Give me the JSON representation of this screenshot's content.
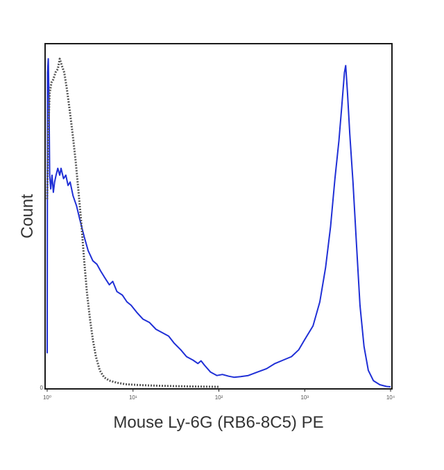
{
  "chart_data": {
    "type": "line",
    "title": "",
    "xlabel": "Mouse Ly-6G (RB6-8C5) PE",
    "ylabel": "Count",
    "xscale": "log",
    "xlim": [
      1,
      10000
    ],
    "ylim": [
      0,
      1
    ],
    "grid": false,
    "x_ticks": [
      {
        "value": 1,
        "label": "10⁰"
      },
      {
        "value": 10,
        "label": "10¹"
      },
      {
        "value": 100,
        "label": "10²"
      },
      {
        "value": 1000,
        "label": "10³"
      },
      {
        "value": 10000,
        "label": "10⁴"
      }
    ],
    "y_ticks": [
      {
        "value": 0,
        "label": "0"
      }
    ],
    "series": [
      {
        "color": "#1f2fd6",
        "style": "solid",
        "points": [
          [
            1.0,
            0.1
          ],
          [
            1.01,
            0.92
          ],
          [
            1.03,
            0.96
          ],
          [
            1.05,
            0.84
          ],
          [
            1.07,
            0.62
          ],
          [
            1.1,
            0.58
          ],
          [
            1.14,
            0.62
          ],
          [
            1.18,
            0.57
          ],
          [
            1.22,
            0.6
          ],
          [
            1.27,
            0.62
          ],
          [
            1.33,
            0.64
          ],
          [
            1.4,
            0.62
          ],
          [
            1.45,
            0.64
          ],
          [
            1.55,
            0.61
          ],
          [
            1.65,
            0.62
          ],
          [
            1.75,
            0.59
          ],
          [
            1.85,
            0.6
          ],
          [
            2.0,
            0.56
          ],
          [
            2.2,
            0.53
          ],
          [
            2.4,
            0.49
          ],
          [
            2.7,
            0.44
          ],
          [
            3.0,
            0.4
          ],
          [
            3.4,
            0.37
          ],
          [
            3.8,
            0.36
          ],
          [
            4.2,
            0.34
          ],
          [
            4.7,
            0.32
          ],
          [
            5.3,
            0.3
          ],
          [
            5.8,
            0.31
          ],
          [
            6.5,
            0.28
          ],
          [
            7.5,
            0.27
          ],
          [
            8.5,
            0.25
          ],
          [
            9.5,
            0.24
          ],
          [
            11.0,
            0.22
          ],
          [
            13.0,
            0.2
          ],
          [
            15.5,
            0.19
          ],
          [
            18.5,
            0.17
          ],
          [
            22.0,
            0.16
          ],
          [
            26.0,
            0.15
          ],
          [
            30.0,
            0.13
          ],
          [
            36.0,
            0.11
          ],
          [
            42.0,
            0.09
          ],
          [
            50.0,
            0.08
          ],
          [
            57.0,
            0.07
          ],
          [
            62.0,
            0.078
          ],
          [
            68.0,
            0.065
          ],
          [
            80.0,
            0.045
          ],
          [
            95.0,
            0.035
          ],
          [
            110.0,
            0.038
          ],
          [
            130.0,
            0.033
          ],
          [
            150.0,
            0.03
          ],
          [
            180.0,
            0.032
          ],
          [
            220.0,
            0.035
          ],
          [
            280.0,
            0.045
          ],
          [
            360.0,
            0.055
          ],
          [
            450.0,
            0.07
          ],
          [
            560.0,
            0.08
          ],
          [
            700.0,
            0.09
          ],
          [
            850.0,
            0.11
          ],
          [
            1000.0,
            0.14
          ],
          [
            1250.0,
            0.18
          ],
          [
            1500.0,
            0.25
          ],
          [
            1750.0,
            0.35
          ],
          [
            2000.0,
            0.47
          ],
          [
            2250.0,
            0.61
          ],
          [
            2500.0,
            0.72
          ],
          [
            2700.0,
            0.82
          ],
          [
            2900.0,
            0.92
          ],
          [
            3000.0,
            0.94
          ],
          [
            3150.0,
            0.86
          ],
          [
            3350.0,
            0.74
          ],
          [
            3650.0,
            0.6
          ],
          [
            4000.0,
            0.42
          ],
          [
            4400.0,
            0.24
          ],
          [
            4900.0,
            0.12
          ],
          [
            5500.0,
            0.05
          ],
          [
            6300.0,
            0.02
          ],
          [
            7500.0,
            0.008
          ],
          [
            9000.0,
            0.003
          ],
          [
            10000.0,
            0.002
          ]
        ]
      },
      {
        "color": "#555555",
        "style": "dotted",
        "points": [
          [
            1.0,
            0.55
          ],
          [
            1.03,
            0.75
          ],
          [
            1.07,
            0.86
          ],
          [
            1.12,
            0.89
          ],
          [
            1.18,
            0.9
          ],
          [
            1.25,
            0.92
          ],
          [
            1.33,
            0.93
          ],
          [
            1.4,
            0.96
          ],
          [
            1.48,
            0.94
          ],
          [
            1.58,
            0.92
          ],
          [
            1.7,
            0.87
          ],
          [
            1.85,
            0.8
          ],
          [
            2.0,
            0.73
          ],
          [
            2.15,
            0.66
          ],
          [
            2.3,
            0.58
          ],
          [
            2.5,
            0.48
          ],
          [
            2.7,
            0.37
          ],
          [
            2.9,
            0.28
          ],
          [
            3.15,
            0.2
          ],
          [
            3.4,
            0.14
          ],
          [
            3.7,
            0.09
          ],
          [
            4.1,
            0.05
          ],
          [
            4.6,
            0.03
          ],
          [
            5.3,
            0.02
          ],
          [
            6.5,
            0.014
          ],
          [
            8.0,
            0.01
          ],
          [
            10.0,
            0.008
          ],
          [
            15.0,
            0.006
          ],
          [
            20.0,
            0.005
          ],
          [
            30.0,
            0.004
          ],
          [
            50.0,
            0.003
          ],
          [
            100.0,
            0.002
          ]
        ]
      }
    ]
  }
}
